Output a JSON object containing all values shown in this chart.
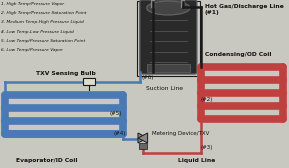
{
  "legend_lines": [
    "1. High Temp/Pressure Vapor",
    "2. High Temp/Pressure Saturation Point",
    "3. Medium Temp-High Pressure Liquid",
    "4. Low Temp-Low Pressure Liquid",
    "5. Low Temp/Pressure Saturation Point",
    "6. Low Temp/Pressure Vapor"
  ],
  "labels": {
    "txv_sensing_bulb": "TXV Sensing Bulb",
    "suction_line": "Suction Line",
    "hot_gas": "Hot Gas/Discharge Line\n(#1)",
    "condensing": "Condensing/OD Coil",
    "evaporator": "Evaporator/ID Coil",
    "liquid_line": "Liquid Line",
    "metering": "Metering Device/TXV",
    "n2": "(#2)",
    "n3": "(#3)",
    "n4": "(#4)",
    "n5": "(#5)",
    "n6": "(#6)"
  },
  "bg_color": "#c8c8c0",
  "blue_color": "#4a7ab5",
  "red_color": "#c04040",
  "black_color": "#1a1a1a",
  "text_color": "#111111",
  "comp_face": "#3a3a3a",
  "comp_edge": "#111111"
}
